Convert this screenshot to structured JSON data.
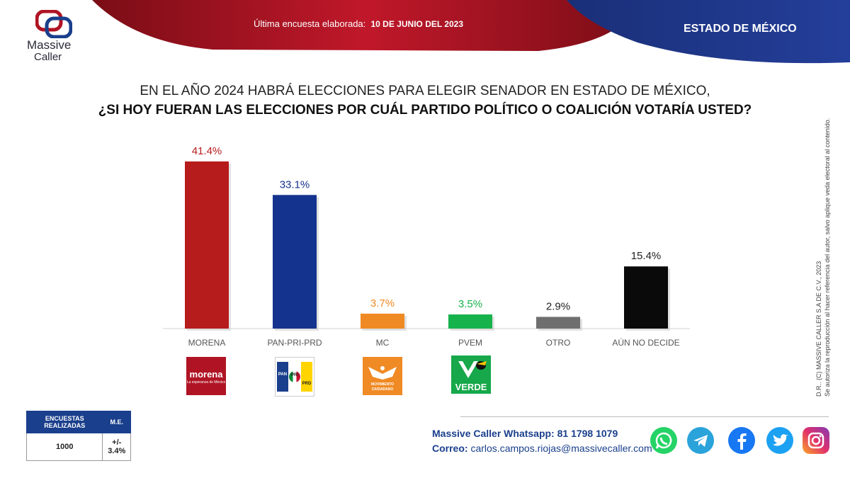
{
  "header": {
    "logo_line1": "Massive",
    "logo_line2": "Caller",
    "date_prefix": "Última encuesta elaborada:",
    "date_value": "10 DE JUNIO DEL 2023",
    "state": "ESTADO DE MÉXICO"
  },
  "question": {
    "line1": "EN EL AÑO 2024 HABRÁ ELECCIONES PARA ELEGIR SENADOR EN ESTADO DE MÉXICO,",
    "line2": "¿SI HOY FUERAN LAS ELECCIONES POR CUÁL PARTIDO POLÍTICO O COALICIÓN  VOTARÍA USTED?"
  },
  "chart_data": {
    "type": "bar",
    "categories": [
      "MORENA",
      "PAN-PRI-PRD",
      "MC",
      "PVEM",
      "OTRO",
      "AÚN NO DECIDE"
    ],
    "values": [
      41.4,
      33.1,
      3.7,
      3.5,
      2.9,
      15.4
    ],
    "value_labels": [
      "41.4%",
      "33.1%",
      "3.7%",
      "3.5%",
      "2.9%",
      "15.4%"
    ],
    "bar_colors": [
      "#b71c1c",
      "#14338e",
      "#f08a24",
      "#16b24b",
      "#6f6f6f",
      "#0a0a0a"
    ],
    "label_colors": [
      "#b71c1c",
      "#14338e",
      "#f08a24",
      "#16b24b",
      "#222222",
      "#222222"
    ],
    "ylim": [
      0,
      45
    ],
    "grid": false
  },
  "party_logos": {
    "morena_title": "morena",
    "morena_subtitle": "La esperanza de México",
    "pan_text": "PAN",
    "pri_text": "PRI",
    "prd_text": "PRD",
    "mc_text1": "MOVIMIENTO",
    "mc_text2": "CIUDADANO",
    "verde_text": "VERDE"
  },
  "stats": {
    "col1_header": "ENCUESTAS REALIZADAS",
    "col2_header": "M.E.",
    "col1_value": "1000",
    "col2_value": "+/- 3.4%"
  },
  "contact": {
    "whatsapp": "Massive Caller Whatsapp: 81 1798  1079",
    "email_label": "Correo:",
    "email": "carlos.campos.riojas@massivecaller.com"
  },
  "legal": {
    "line1": "D.R.. (C) MASSIVE CALLER S.A DE C.V., 2023",
    "line2": "Se autoriza la reproducción al hacer referencia del autor, salvo aplique veda electoral al contenido."
  },
  "colors": {
    "red": "#b01424",
    "navy": "#1a3f8c",
    "whatsapp": "#25d366",
    "telegram": "#2aa3db",
    "facebook": "#1877f2",
    "twitter": "#1da1f2",
    "instagram": "#c13584"
  }
}
